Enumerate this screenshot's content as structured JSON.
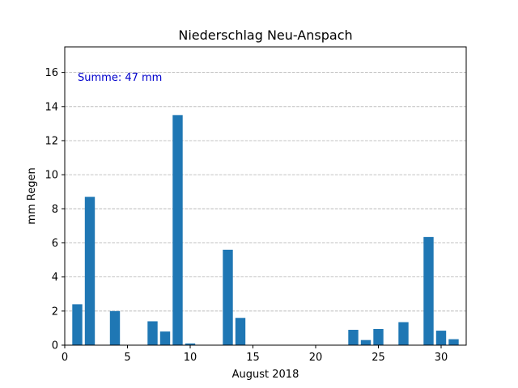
{
  "chart_data": {
    "type": "bar",
    "title": "Niederschlag Neu-Anspach",
    "xlabel": "August 2018",
    "ylabel": "mm Regen",
    "annotation": "Summe: 47 mm",
    "annotation_color": "#0000cc",
    "bar_color": "#1f77b4",
    "grid": "y-dashed",
    "xlim": [
      0,
      32
    ],
    "ylim": [
      0,
      17.5
    ],
    "xticks": [
      0,
      5,
      10,
      15,
      20,
      25,
      30
    ],
    "yticks": [
      0,
      2,
      4,
      6,
      8,
      10,
      12,
      14,
      16
    ],
    "x": [
      1,
      2,
      3,
      4,
      5,
      6,
      7,
      8,
      9,
      10,
      11,
      12,
      13,
      14,
      15,
      16,
      17,
      18,
      19,
      20,
      21,
      22,
      23,
      24,
      25,
      26,
      27,
      28,
      29,
      30,
      31
    ],
    "values": [
      2.4,
      8.7,
      0,
      2.0,
      0,
      0,
      1.4,
      0.8,
      13.5,
      0.1,
      0,
      0,
      5.6,
      1.6,
      0,
      0,
      0,
      0,
      0,
      0,
      0,
      0,
      0.9,
      0.3,
      0.95,
      0,
      1.35,
      0,
      6.35,
      0.85,
      0.35
    ]
  }
}
